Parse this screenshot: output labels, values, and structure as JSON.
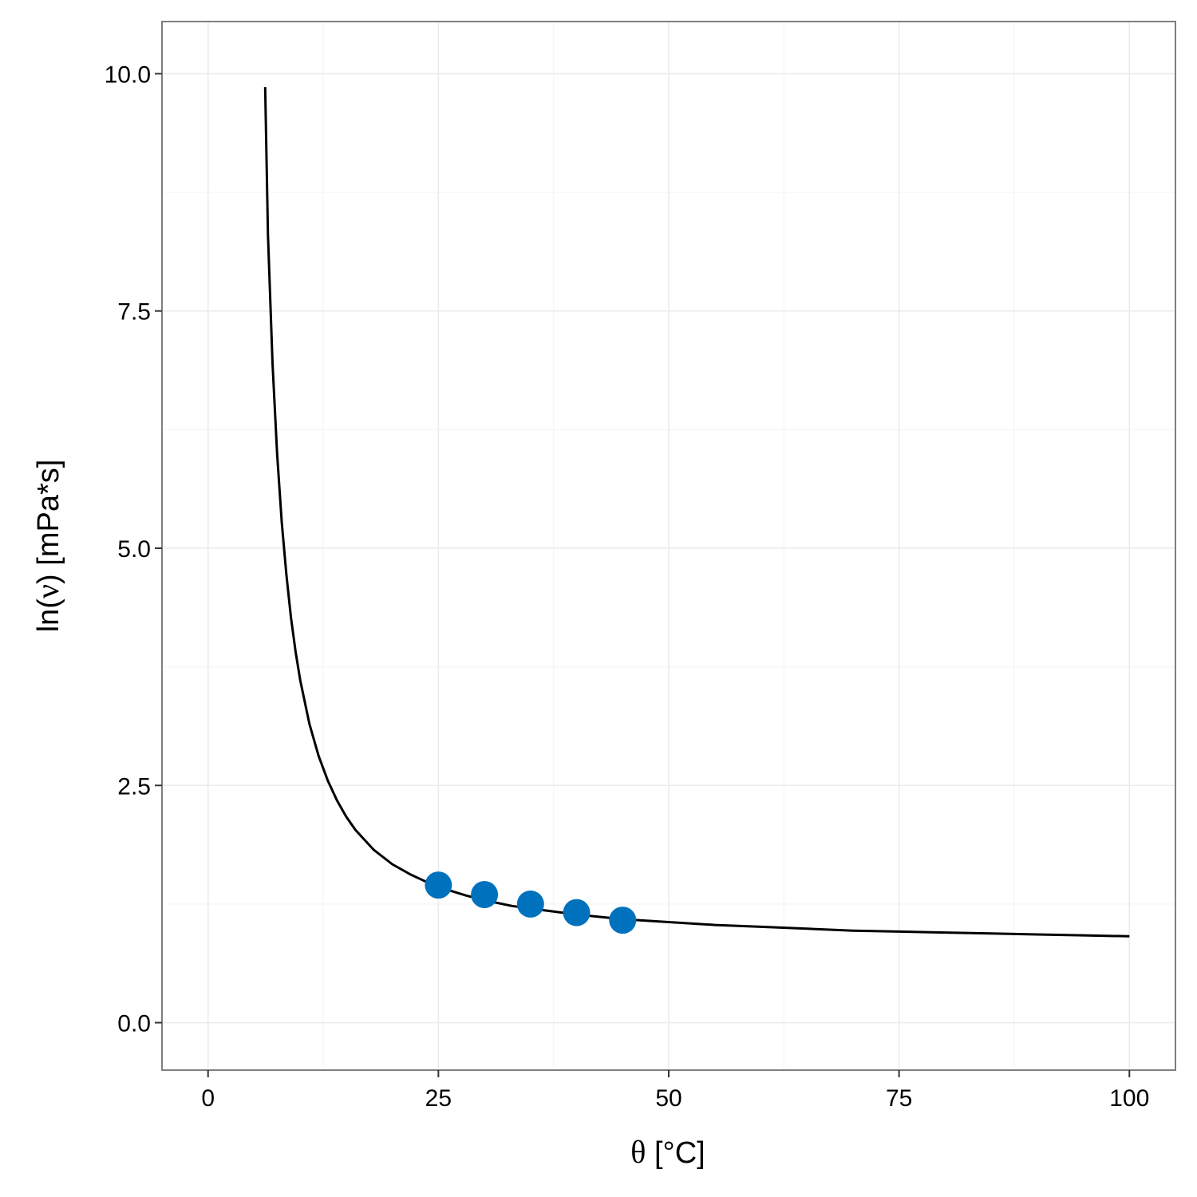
{
  "chart_data": {
    "type": "line",
    "title": "",
    "xlabel": {
      "symbol": "θ",
      "unit": " [°C]"
    },
    "ylabel": {
      "prefix": "ln(",
      "symbol": "ν",
      "suffix": ") [mPa*s]"
    },
    "xlim": [
      -5,
      105
    ],
    "ylim": [
      -0.5,
      10.55
    ],
    "x_ticks": [
      0,
      25,
      50,
      75,
      100
    ],
    "x_tick_labels": [
      "0",
      "25",
      "50",
      "75",
      "100"
    ],
    "y_ticks": [
      0,
      2.5,
      5,
      7.5,
      10
    ],
    "y_tick_labels": [
      "0.0",
      "2.5",
      "5.0",
      "7.5",
      "10.0"
    ],
    "grid": true,
    "legend": "none",
    "colors": {
      "points": "#0072BD",
      "curve": "#000000",
      "grid_major": "#EBEBEB",
      "grid_minor": "#F5F5F5",
      "panel_border": "#7F7F7F"
    },
    "series": [
      {
        "kind": "points",
        "x": [
          25,
          30,
          35,
          40,
          45
        ],
        "y": [
          1.45,
          1.35,
          1.25,
          1.16,
          1.08
        ]
      },
      {
        "kind": "line",
        "x": [
          6.2,
          6.5,
          7,
          7.5,
          8,
          8.5,
          9,
          9.5,
          10,
          11,
          12,
          13,
          14,
          15,
          16,
          18,
          20,
          22,
          24,
          26,
          28,
          30,
          33,
          36,
          40,
          45,
          50,
          55,
          60,
          65,
          70,
          75,
          80,
          85,
          90,
          95,
          100
        ],
        "y": [
          9.86,
          8.3,
          6.95,
          5.99,
          5.27,
          4.72,
          4.27,
          3.91,
          3.61,
          3.15,
          2.81,
          2.55,
          2.34,
          2.17,
          2.03,
          1.82,
          1.67,
          1.56,
          1.47,
          1.4,
          1.34,
          1.29,
          1.23,
          1.19,
          1.14,
          1.09,
          1.06,
          1.03,
          1.01,
          0.99,
          0.97,
          0.96,
          0.95,
          0.94,
          0.93,
          0.92,
          0.91
        ]
      }
    ]
  }
}
